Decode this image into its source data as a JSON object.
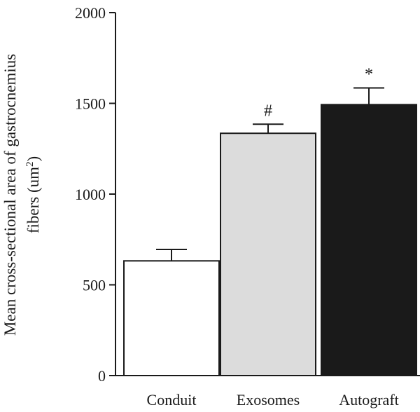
{
  "chart_data": {
    "type": "bar",
    "categories": [
      "Conduit",
      "Exosomes",
      "Autograft"
    ],
    "values": [
      632,
      1335,
      1493
    ],
    "errors": [
      63,
      50,
      92
    ],
    "annotations": [
      "",
      "#",
      "*"
    ],
    "bar_colors": [
      "#ffffff",
      "#dcdcdc",
      "#1a1a1a"
    ],
    "bar_stroke": "#1a1a1a",
    "ylabel_line1": "Mean cross-sectional area of gastrocnemius",
    "ylabel_line2": "fibers (um",
    "ylabel_sup": "2",
    "ylabel_close": ")",
    "ylim": [
      0,
      2000
    ],
    "yticks": [
      0,
      500,
      1000,
      1500,
      2000
    ],
    "ytick_labels": [
      "0",
      "500",
      "1000",
      "1500",
      "2000"
    ],
    "grid": false,
    "legend": "none"
  }
}
